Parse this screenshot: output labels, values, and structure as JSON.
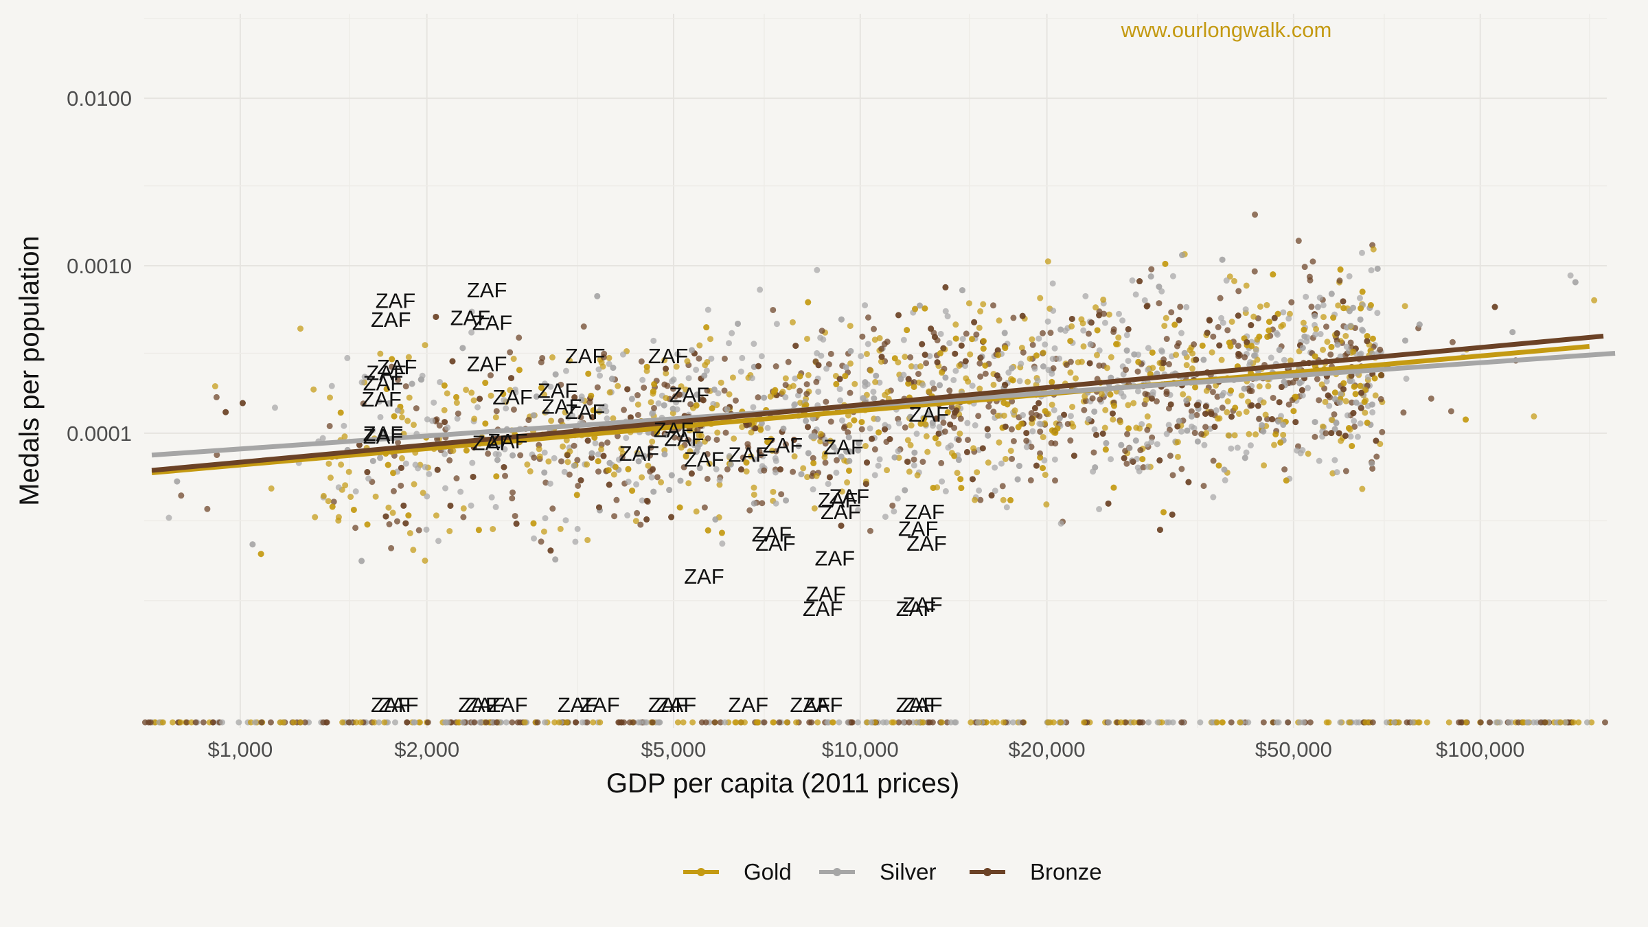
{
  "chart_data": {
    "type": "scatter",
    "title": "",
    "xlabel": "GDP per capita (2011 prices)",
    "ylabel": "Medals per population",
    "x_scale": "log",
    "y_scale": "log",
    "xlim": [
      700,
      160000
    ],
    "ylim": [
      2.1e-06,
      0.032
    ],
    "x_ticks": [
      {
        "value": 1000,
        "label": "$1,000"
      },
      {
        "value": 2000,
        "label": "$2,000"
      },
      {
        "value": 5000,
        "label": "$5,000"
      },
      {
        "value": 10000,
        "label": "$10,000"
      },
      {
        "value": 20000,
        "label": "$20,000"
      },
      {
        "value": 50000,
        "label": "$50,000"
      },
      {
        "value": 100000,
        "label": "$100,000"
      }
    ],
    "y_ticks": [
      {
        "value": 0.0001,
        "label": "0.0001"
      },
      {
        "value": 0.001,
        "label": "0.0010"
      },
      {
        "value": 0.01,
        "label": "0.0100"
      }
    ],
    "grid": true,
    "legend_position": "bottom",
    "watermark": "www.ourlongwalk.com",
    "highlight_label": "ZAF",
    "series": [
      {
        "name": "Gold",
        "color": "#c49a12",
        "trend": [
          [
            720,
            5.8e-05
          ],
          [
            150000,
            0.00033
          ]
        ]
      },
      {
        "name": "Silver",
        "color": "#a6a6a6",
        "trend": [
          [
            720,
            7.4e-05
          ],
          [
            165000,
            0.0003
          ]
        ]
      },
      {
        "name": "Bronze",
        "color": "#6b4226",
        "trend": [
          [
            720,
            6e-05
          ],
          [
            158000,
            0.00038
          ]
        ]
      }
    ],
    "zaf_points": [
      [
        1780,
        0.00062
      ],
      [
        1750,
        0.00048
      ],
      [
        1790,
        0.00025
      ],
      [
        1720,
        0.00023
      ],
      [
        1700,
        0.0002
      ],
      [
        1690,
        0.00016
      ],
      [
        1700,
        0.0001
      ],
      [
        1700,
        9.6e-05
      ],
      [
        2500,
        0.00072
      ],
      [
        2350,
        0.00049
      ],
      [
        2550,
        0.00046
      ],
      [
        2500,
        0.00026
      ],
      [
        2750,
        0.000165
      ],
      [
        3250,
        0.00018
      ],
      [
        3600,
        0.00029
      ],
      [
        3300,
        0.000145
      ],
      [
        3600,
        0.000135
      ],
      [
        2550,
        8.8e-05
      ],
      [
        2700,
        9e-05
      ],
      [
        4400,
        7.6e-05
      ],
      [
        4900,
        0.00029
      ],
      [
        5300,
        0.00017
      ],
      [
        5000,
        0.000105
      ],
      [
        5200,
        9.3e-05
      ],
      [
        5600,
        7e-05
      ],
      [
        6600,
        7.5e-05
      ],
      [
        7500,
        8.5e-05
      ],
      [
        9400,
        8.3e-05
      ],
      [
        9200,
        4e-05
      ],
      [
        9600,
        4.2e-05
      ],
      [
        9300,
        3.4e-05
      ],
      [
        7200,
        2.5e-05
      ],
      [
        7300,
        2.2e-05
      ],
      [
        9100,
        1.8e-05
      ],
      [
        12900,
        0.00013
      ],
      [
        12700,
        3.4e-05
      ],
      [
        12400,
        2.7e-05
      ],
      [
        12800,
        2.2e-05
      ],
      [
        8800,
        1.1e-05
      ],
      [
        8700,
        9e-06
      ],
      [
        12600,
        9.5e-06
      ],
      [
        12300,
        9e-06
      ],
      [
        5600,
        1.4e-05
      ]
    ],
    "zaf_zero_x": [
      1750,
      1800,
      2420,
      2480,
      2700,
      3500,
      3800,
      4900,
      5050,
      6600,
      8300,
      8700,
      12300,
      12600
    ]
  },
  "legend": {
    "items": [
      {
        "label": "Gold",
        "color": "#c49a12"
      },
      {
        "label": "Silver",
        "color": "#a6a6a6"
      },
      {
        "label": "Bronze",
        "color": "#6b4226"
      }
    ]
  }
}
